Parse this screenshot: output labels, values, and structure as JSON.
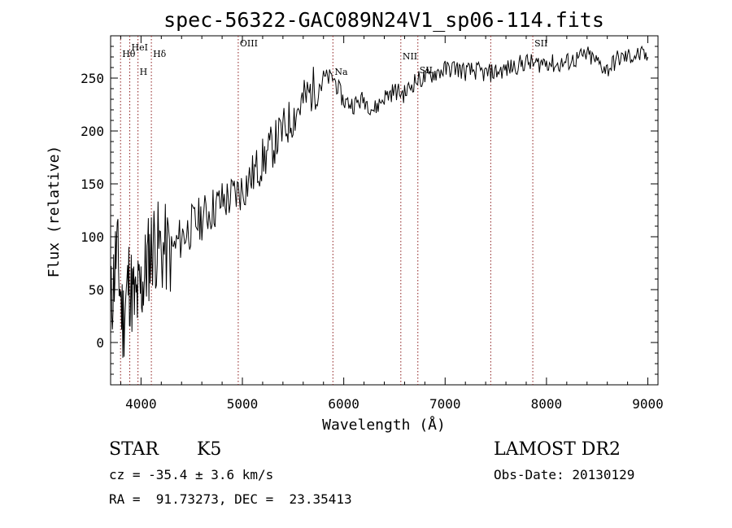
{
  "chart_data": {
    "type": "line",
    "title": "spec-56322-GAC089N24V1_sp06-114.fits",
    "xlabel": "Wavelength (Å)",
    "ylabel": "Flux (relative)",
    "xlim": [
      3700,
      9100
    ],
    "ylim": [
      -40,
      290
    ],
    "xticks": [
      4000,
      5000,
      6000,
      7000,
      8000,
      9000
    ],
    "yticks": [
      0,
      50,
      100,
      150,
      200,
      250
    ],
    "grid": false,
    "line_color": "#000000",
    "line_marker_color": "#8b1a1a",
    "spectrum": {
      "x": [
        3700,
        3760,
        3820,
        3880,
        3940,
        4000,
        4060,
        4120,
        4200,
        4300,
        4400,
        4500,
        4600,
        4700,
        4800,
        4900,
        5000,
        5100,
        5200,
        5300,
        5400,
        5500,
        5600,
        5700,
        5800,
        5900,
        6000,
        6100,
        6200,
        6300,
        6400,
        6500,
        6600,
        6700,
        6800,
        6900,
        7000,
        7100,
        7200,
        7300,
        7400,
        7500,
        7600,
        7700,
        7800,
        7900,
        8000,
        8100,
        8200,
        8300,
        8400,
        8500,
        8600,
        8700,
        8800,
        8900,
        9000
      ],
      "y": [
        30,
        90,
        20,
        60,
        35,
        50,
        75,
        95,
        88,
        85,
        100,
        110,
        118,
        126,
        133,
        138,
        145,
        158,
        172,
        186,
        200,
        214,
        228,
        240,
        250,
        250,
        228,
        225,
        230,
        220,
        232,
        238,
        235,
        247,
        250,
        255,
        258,
        260,
        256,
        257,
        254,
        256,
        258,
        262,
        265,
        263,
        266,
        262,
        265,
        268,
        272,
        265,
        258,
        268,
        270,
        272,
        270
      ]
    },
    "lines": [
      {
        "label": "Hθ",
        "x": 3798
      },
      {
        "label": "HeI",
        "x": 3889
      },
      {
        "label": "H",
        "x": 3970
      },
      {
        "label": "Hδ",
        "x": 4102
      },
      {
        "label": "OIII",
        "x": 4959
      },
      {
        "label": "Na",
        "x": 5893
      },
      {
        "label": "NII",
        "x": 6563
      },
      {
        "label": "SII",
        "x": 6731
      },
      {
        "label": "",
        "x": 7450
      },
      {
        "label": "SII",
        "x": 7865
      }
    ]
  },
  "info": {
    "class": "STAR",
    "subclass": "K5",
    "cz": "cz = -35.4 ± 3.6 km/s",
    "coords": "RA =  91.73273, DEC =  23.35413",
    "survey": "LAMOST DR2",
    "obs_date": "Obs-Date: 20130129"
  }
}
